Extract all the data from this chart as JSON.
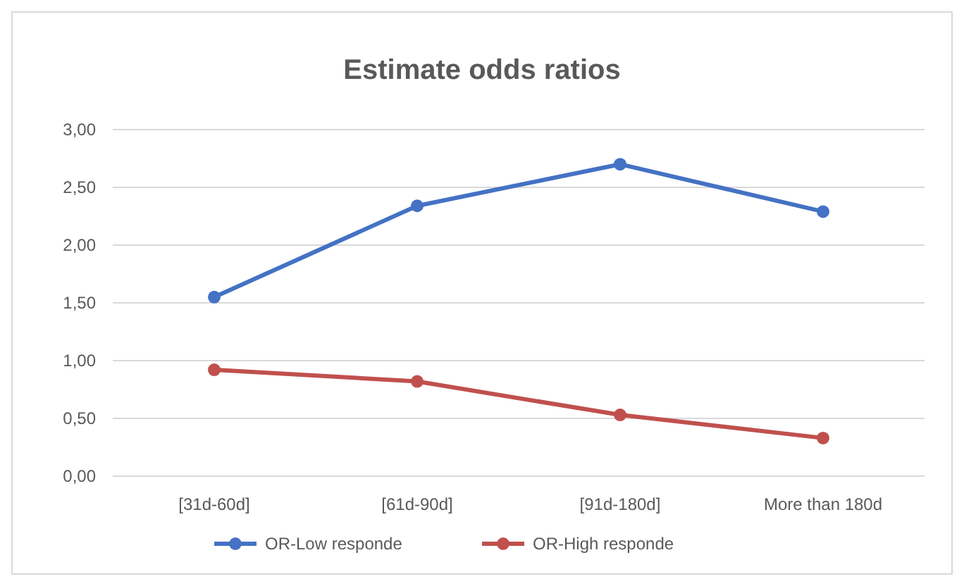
{
  "chart_data": {
    "type": "line",
    "title": "Estimate odds ratios",
    "categories": [
      "[31d-60d]",
      "[61d-90d]",
      "[91d-180d]",
      "More than 180d"
    ],
    "series": [
      {
        "name": "OR-Low responde",
        "color": "#4472c4",
        "values": [
          1.55,
          2.34,
          2.7,
          2.29
        ]
      },
      {
        "name": "OR-High responde",
        "color": "#c0504d",
        "values": [
          0.92,
          0.82,
          0.53,
          0.33
        ]
      }
    ],
    "ylim": [
      0,
      3
    ],
    "yticks": [
      {
        "value": 0,
        "label": "0,00"
      },
      {
        "value": 0.5,
        "label": "0,50"
      },
      {
        "value": 1,
        "label": "1,00"
      },
      {
        "value": 1.5,
        "label": "1,50"
      },
      {
        "value": 2,
        "label": "2,00"
      },
      {
        "value": 2.5,
        "label": "2,50"
      },
      {
        "value": 3,
        "label": "3,00"
      }
    ],
    "grid": "y",
    "legend": "bottom",
    "marker": "circle",
    "line_style": "solid"
  }
}
